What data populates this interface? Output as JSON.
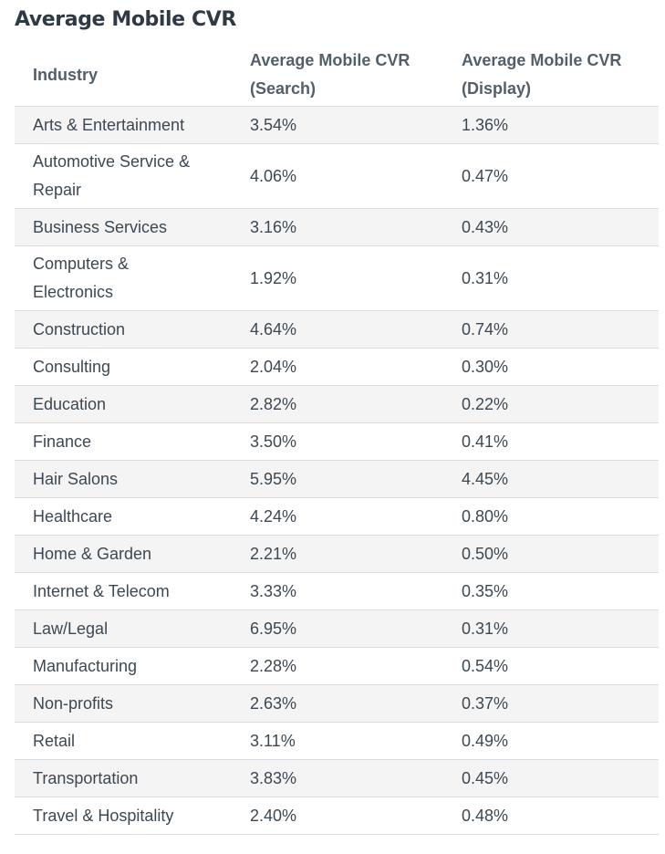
{
  "title": "Average Mobile CVR",
  "table": {
    "headers": [
      "Industry",
      "Average Mobile CVR (Search)",
      "Average Mobile CVR (Display)"
    ],
    "rows": [
      {
        "industry": "Arts & Entertainment",
        "search": "3.54%",
        "display": "1.36%"
      },
      {
        "industry": "Automotive Service & Repair",
        "search": "4.06%",
        "display": "0.47%"
      },
      {
        "industry": "Business Services",
        "search": "3.16%",
        "display": "0.43%"
      },
      {
        "industry": "Computers & Electronics",
        "search": "1.92%",
        "display": "0.31%"
      },
      {
        "industry": "Construction",
        "search": "4.64%",
        "display": "0.74%"
      },
      {
        "industry": "Consulting",
        "search": "2.04%",
        "display": "0.30%"
      },
      {
        "industry": "Education",
        "search": "2.82%",
        "display": "0.22%"
      },
      {
        "industry": "Finance",
        "search": "3.50%",
        "display": "0.41%"
      },
      {
        "industry": "Hair Salons",
        "search": "5.95%",
        "display": "4.45%"
      },
      {
        "industry": "Healthcare",
        "search": "4.24%",
        "display": "0.80%"
      },
      {
        "industry": "Home & Garden",
        "search": "2.21%",
        "display": "0.50%"
      },
      {
        "industry": "Internet & Telecom",
        "search": "3.33%",
        "display": "0.35%"
      },
      {
        "industry": "Law/Legal",
        "search": "6.95%",
        "display": "0.31%"
      },
      {
        "industry": "Manufacturing",
        "search": "2.28%",
        "display": "0.54%"
      },
      {
        "industry": "Non-profits",
        "search": "2.63%",
        "display": "0.37%"
      },
      {
        "industry": "Retail",
        "search": "3.11%",
        "display": "0.49%"
      },
      {
        "industry": "Transportation",
        "search": "3.83%",
        "display": "0.45%"
      },
      {
        "industry": "Travel & Hospitality",
        "search": "2.40%",
        "display": "0.48%"
      }
    ]
  }
}
